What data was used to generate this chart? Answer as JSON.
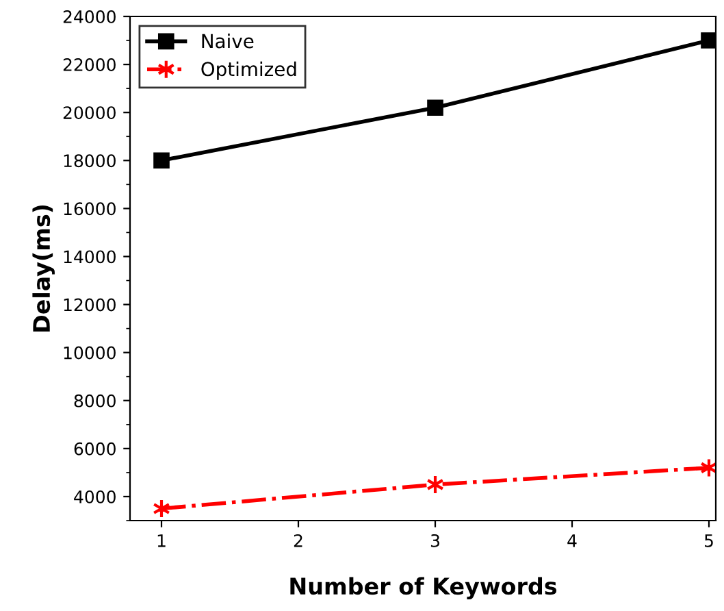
{
  "chart_data": {
    "type": "line",
    "xlabel": "Number of Keywords",
    "ylabel": "Delay(ms)",
    "x": [
      1,
      3,
      5
    ],
    "series": [
      {
        "name": "Naive",
        "color": "#000000",
        "values": [
          18000,
          20200,
          23000
        ],
        "marker": "square",
        "line_style": "solid"
      },
      {
        "name": "Optimized",
        "color": "#ff0000",
        "values": [
          3500,
          4500,
          5200
        ],
        "marker": "cross",
        "line_style": "dashdot"
      }
    ],
    "xlim": [
      0.77,
      5.05
    ],
    "xticks": [
      1,
      2,
      3,
      4,
      5
    ],
    "ylim": [
      3000,
      24000
    ],
    "yticks": [
      4000,
      6000,
      8000,
      10000,
      12000,
      14000,
      16000,
      18000,
      20000,
      22000,
      24000
    ],
    "legend": "top left",
    "grid": false
  }
}
